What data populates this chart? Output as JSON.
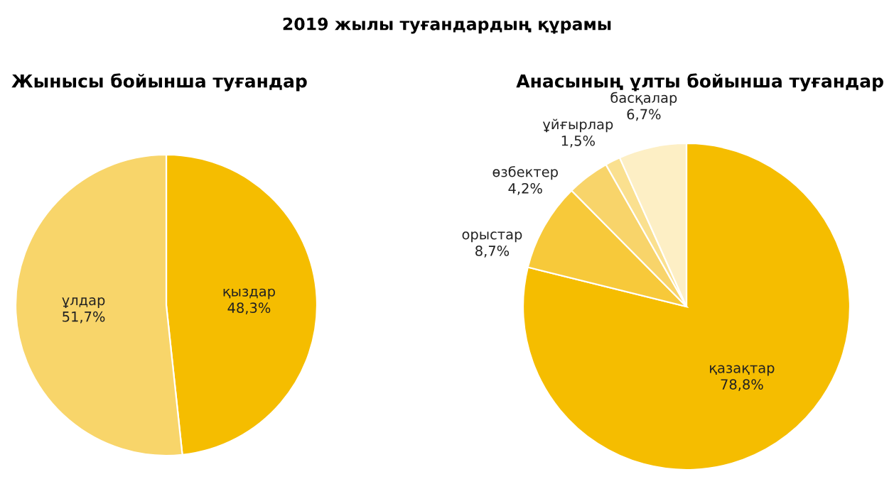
{
  "chart_data": [
    {
      "type": "pie",
      "title": "Жынысы бойынша туғандар",
      "annotations": [
        "2019 жылы туғандардың құрамы"
      ],
      "categories": [
        "қыздар",
        "ұлдар"
      ],
      "values": [
        48.3,
        51.7
      ],
      "value_labels": [
        "48,3%",
        "51,7%"
      ],
      "colors": [
        "#f5bd00",
        "#f8d56a"
      ]
    },
    {
      "type": "pie",
      "title": "Анасының ұлты бойынша туғандар",
      "categories": [
        "қазақтар",
        "орыстар",
        "өзбектер",
        "ұйғырлар",
        "басқалар"
      ],
      "values": [
        78.8,
        8.7,
        4.2,
        1.5,
        6.7
      ],
      "value_labels": [
        "78,8%",
        "8,7%",
        "4,2%",
        "1,5%",
        "6,7%"
      ],
      "colors": [
        "#f5bd00",
        "#f7c93a",
        "#f8d46a",
        "#fae08f",
        "#fdefc5"
      ]
    }
  ]
}
